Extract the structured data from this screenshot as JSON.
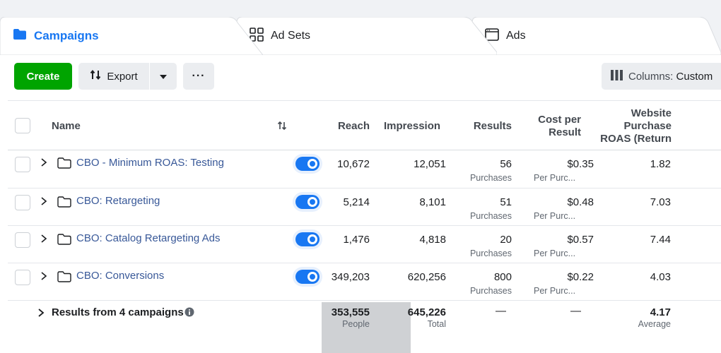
{
  "tabs": {
    "campaigns": "Campaigns",
    "ad_sets": "Ad Sets",
    "ads": "Ads"
  },
  "toolbar": {
    "create": "Create",
    "export": "Export",
    "more": "···",
    "columns_prefix": "Columns:",
    "columns_value": "Custom"
  },
  "columns": {
    "name": "Name",
    "reach": "Reach",
    "impressions": "Impression",
    "results": "Results",
    "cost_line1": "Cost per",
    "cost_line2": "Result",
    "roas_line1": "Website",
    "roas_line2": "Purchase",
    "roas_line3": "ROAS (Return"
  },
  "rows": [
    {
      "name": "CBO - Minimum ROAS: Testing",
      "reach": "10,672",
      "impressions": "12,051",
      "results": "56",
      "results_sub": "Purchases",
      "cost": "$0.35",
      "cost_sub": "Per Purc...",
      "roas": "1.82"
    },
    {
      "name": "CBO: Retargeting",
      "reach": "5,214",
      "impressions": "8,101",
      "results": "51",
      "results_sub": "Purchases",
      "cost": "$0.48",
      "cost_sub": "Per Purc...",
      "roas": "7.03"
    },
    {
      "name": "CBO: Catalog Retargeting Ads",
      "reach": "1,476",
      "impressions": "4,818",
      "results": "20",
      "results_sub": "Purchases",
      "cost": "$0.57",
      "cost_sub": "Per Purc...",
      "roas": "7.44"
    },
    {
      "name": "CBO: Conversions",
      "reach": "349,203",
      "impressions": "620,256",
      "results": "800",
      "results_sub": "Purchases",
      "cost": "$0.22",
      "cost_sub": "Per Purc...",
      "roas": "4.03"
    }
  ],
  "summary": {
    "label": "Results from 4 campaigns",
    "reach": "353,555",
    "reach_sub": "People",
    "impressions": "645,226",
    "impressions_sub": "Total",
    "results": "—",
    "cost": "—",
    "roas": "4.17",
    "roas_sub": "Average"
  },
  "colors": {
    "accent": "#1877f2",
    "create": "#00a400",
    "link": "#385898"
  }
}
